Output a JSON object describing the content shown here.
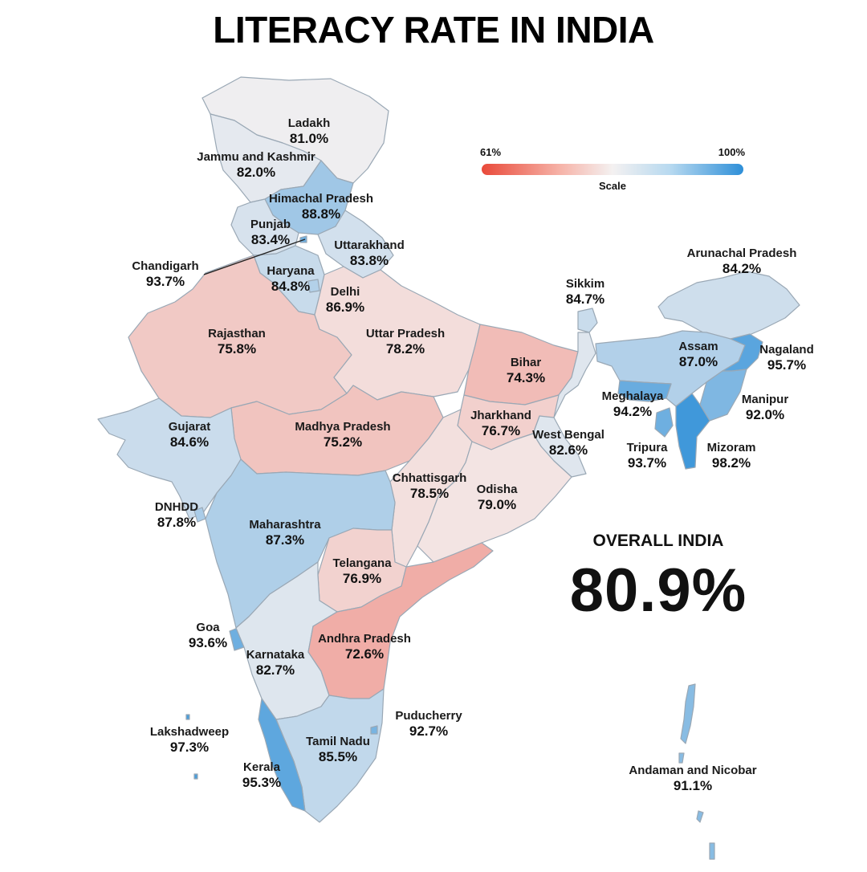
{
  "title": "LITERACY RATE IN INDIA",
  "scale": {
    "min_label": "61%",
    "max_label": "100%",
    "caption": "Scale",
    "min": 61,
    "max": 100
  },
  "overall": {
    "label": "OVERALL INDIA",
    "value": "80.9%"
  },
  "colors": {
    "low": "#e94a3a",
    "mid": "#f4f1f1",
    "high": "#2e8fd8",
    "border": "#9aa8b5"
  },
  "regions": {
    "ladakh": {
      "name": "Ladakh",
      "value": "81.0%",
      "rate": 81.0
    },
    "jk": {
      "name": "Jammu and Kashmir",
      "value": "82.0%",
      "rate": 82.0
    },
    "himachal": {
      "name": "Himachal Pradesh",
      "value": "88.8%",
      "rate": 88.8
    },
    "punjab": {
      "name": "Punjab",
      "value": "83.4%",
      "rate": 83.4
    },
    "uttarakhand": {
      "name": "Uttarakhand",
      "value": "83.8%",
      "rate": 83.8
    },
    "chandigarh": {
      "name": "Chandigarh",
      "value": "93.7%",
      "rate": 93.7
    },
    "haryana": {
      "name": "Haryana",
      "value": "84.8%",
      "rate": 84.8
    },
    "delhi": {
      "name": "Delhi",
      "value": "86.9%",
      "rate": 86.9
    },
    "rajasthan": {
      "name": "Rajasthan",
      "value": "75.8%",
      "rate": 75.8
    },
    "up": {
      "name": "Uttar Pradesh",
      "value": "78.2%",
      "rate": 78.2
    },
    "bihar": {
      "name": "Bihar",
      "value": "74.3%",
      "rate": 74.3
    },
    "sikkim": {
      "name": "Sikkim",
      "value": "84.7%",
      "rate": 84.7
    },
    "arunachal": {
      "name": "Arunachal Pradesh",
      "value": "84.2%",
      "rate": 84.2
    },
    "assam": {
      "name": "Assam",
      "value": "87.0%",
      "rate": 87.0
    },
    "nagaland": {
      "name": "Nagaland",
      "value": "95.7%",
      "rate": 95.7
    },
    "meghalaya": {
      "name": "Meghalaya",
      "value": "94.2%",
      "rate": 94.2
    },
    "manipur": {
      "name": "Manipur",
      "value": "92.0%",
      "rate": 92.0
    },
    "tripura": {
      "name": "Tripura",
      "value": "93.7%",
      "rate": 93.7
    },
    "mizoram": {
      "name": "Mizoram",
      "value": "98.2%",
      "rate": 98.2
    },
    "gujarat": {
      "name": "Gujarat",
      "value": "84.6%",
      "rate": 84.6
    },
    "mp": {
      "name": "Madhya Pradesh",
      "value": "75.2%",
      "rate": 75.2
    },
    "jharkhand": {
      "name": "Jharkhand",
      "value": "76.7%",
      "rate": 76.7
    },
    "wb": {
      "name": "West Bengal",
      "value": "82.6%",
      "rate": 82.6
    },
    "chhattisgarh": {
      "name": "Chhattisgarh",
      "value": "78.5%",
      "rate": 78.5
    },
    "odisha": {
      "name": "Odisha",
      "value": "79.0%",
      "rate": 79.0
    },
    "dnhdd": {
      "name": "DNHDD",
      "value": "87.8%",
      "rate": 87.8
    },
    "maharashtra": {
      "name": "Maharashtra",
      "value": "87.3%",
      "rate": 87.3
    },
    "telangana": {
      "name": "Telangana",
      "value": "76.9%",
      "rate": 76.9
    },
    "goa": {
      "name": "Goa",
      "value": "93.6%",
      "rate": 93.6
    },
    "ap": {
      "name": "Andhra Pradesh",
      "value": "72.6%",
      "rate": 72.6
    },
    "karnataka": {
      "name": "Karnataka",
      "value": "82.7%",
      "rate": 82.7
    },
    "puducherry": {
      "name": "Puducherry",
      "value": "92.7%",
      "rate": 92.7
    },
    "lakshadweep": {
      "name": "Lakshadweep",
      "value": "97.3%",
      "rate": 97.3
    },
    "tamilnadu": {
      "name": "Tamil Nadu",
      "value": "85.5%",
      "rate": 85.5
    },
    "kerala": {
      "name": "Kerala",
      "value": "95.3%",
      "rate": 95.3
    },
    "andaman": {
      "name": "Andaman and Nicobar",
      "value": "91.1%",
      "rate": 91.1
    }
  }
}
